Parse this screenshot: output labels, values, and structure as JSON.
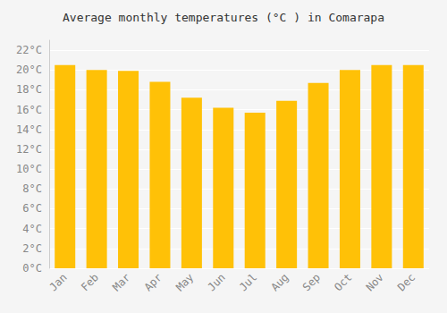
{
  "chart_data": {
    "type": "bar",
    "title": "Average monthly temperatures (°C ) in Comarapa",
    "categories": [
      "Jan",
      "Feb",
      "Mar",
      "Apr",
      "May",
      "Jun",
      "Jul",
      "Aug",
      "Sep",
      "Oct",
      "Nov",
      "Dec"
    ],
    "values": [
      20.5,
      20.0,
      19.9,
      18.8,
      17.2,
      16.2,
      15.7,
      16.9,
      18.7,
      20.0,
      20.5,
      20.5
    ],
    "color": "#FFC107",
    "ylim": [
      0,
      23
    ],
    "yticks": [
      {
        "value": 0,
        "label": "0°C"
      },
      {
        "value": 2,
        "label": "2°C"
      },
      {
        "value": 4,
        "label": "4°C"
      },
      {
        "value": 6,
        "label": "6°C"
      },
      {
        "value": 8,
        "label": "8°C"
      },
      {
        "value": 10,
        "label": "10°C"
      },
      {
        "value": 12,
        "label": "12°C"
      },
      {
        "value": 14,
        "label": "14°C"
      },
      {
        "value": 16,
        "label": "16°C"
      },
      {
        "value": 18,
        "label": "18°C"
      },
      {
        "value": 20,
        "label": "20°C"
      },
      {
        "value": 22,
        "label": "22°C"
      }
    ],
    "grid": true
  }
}
